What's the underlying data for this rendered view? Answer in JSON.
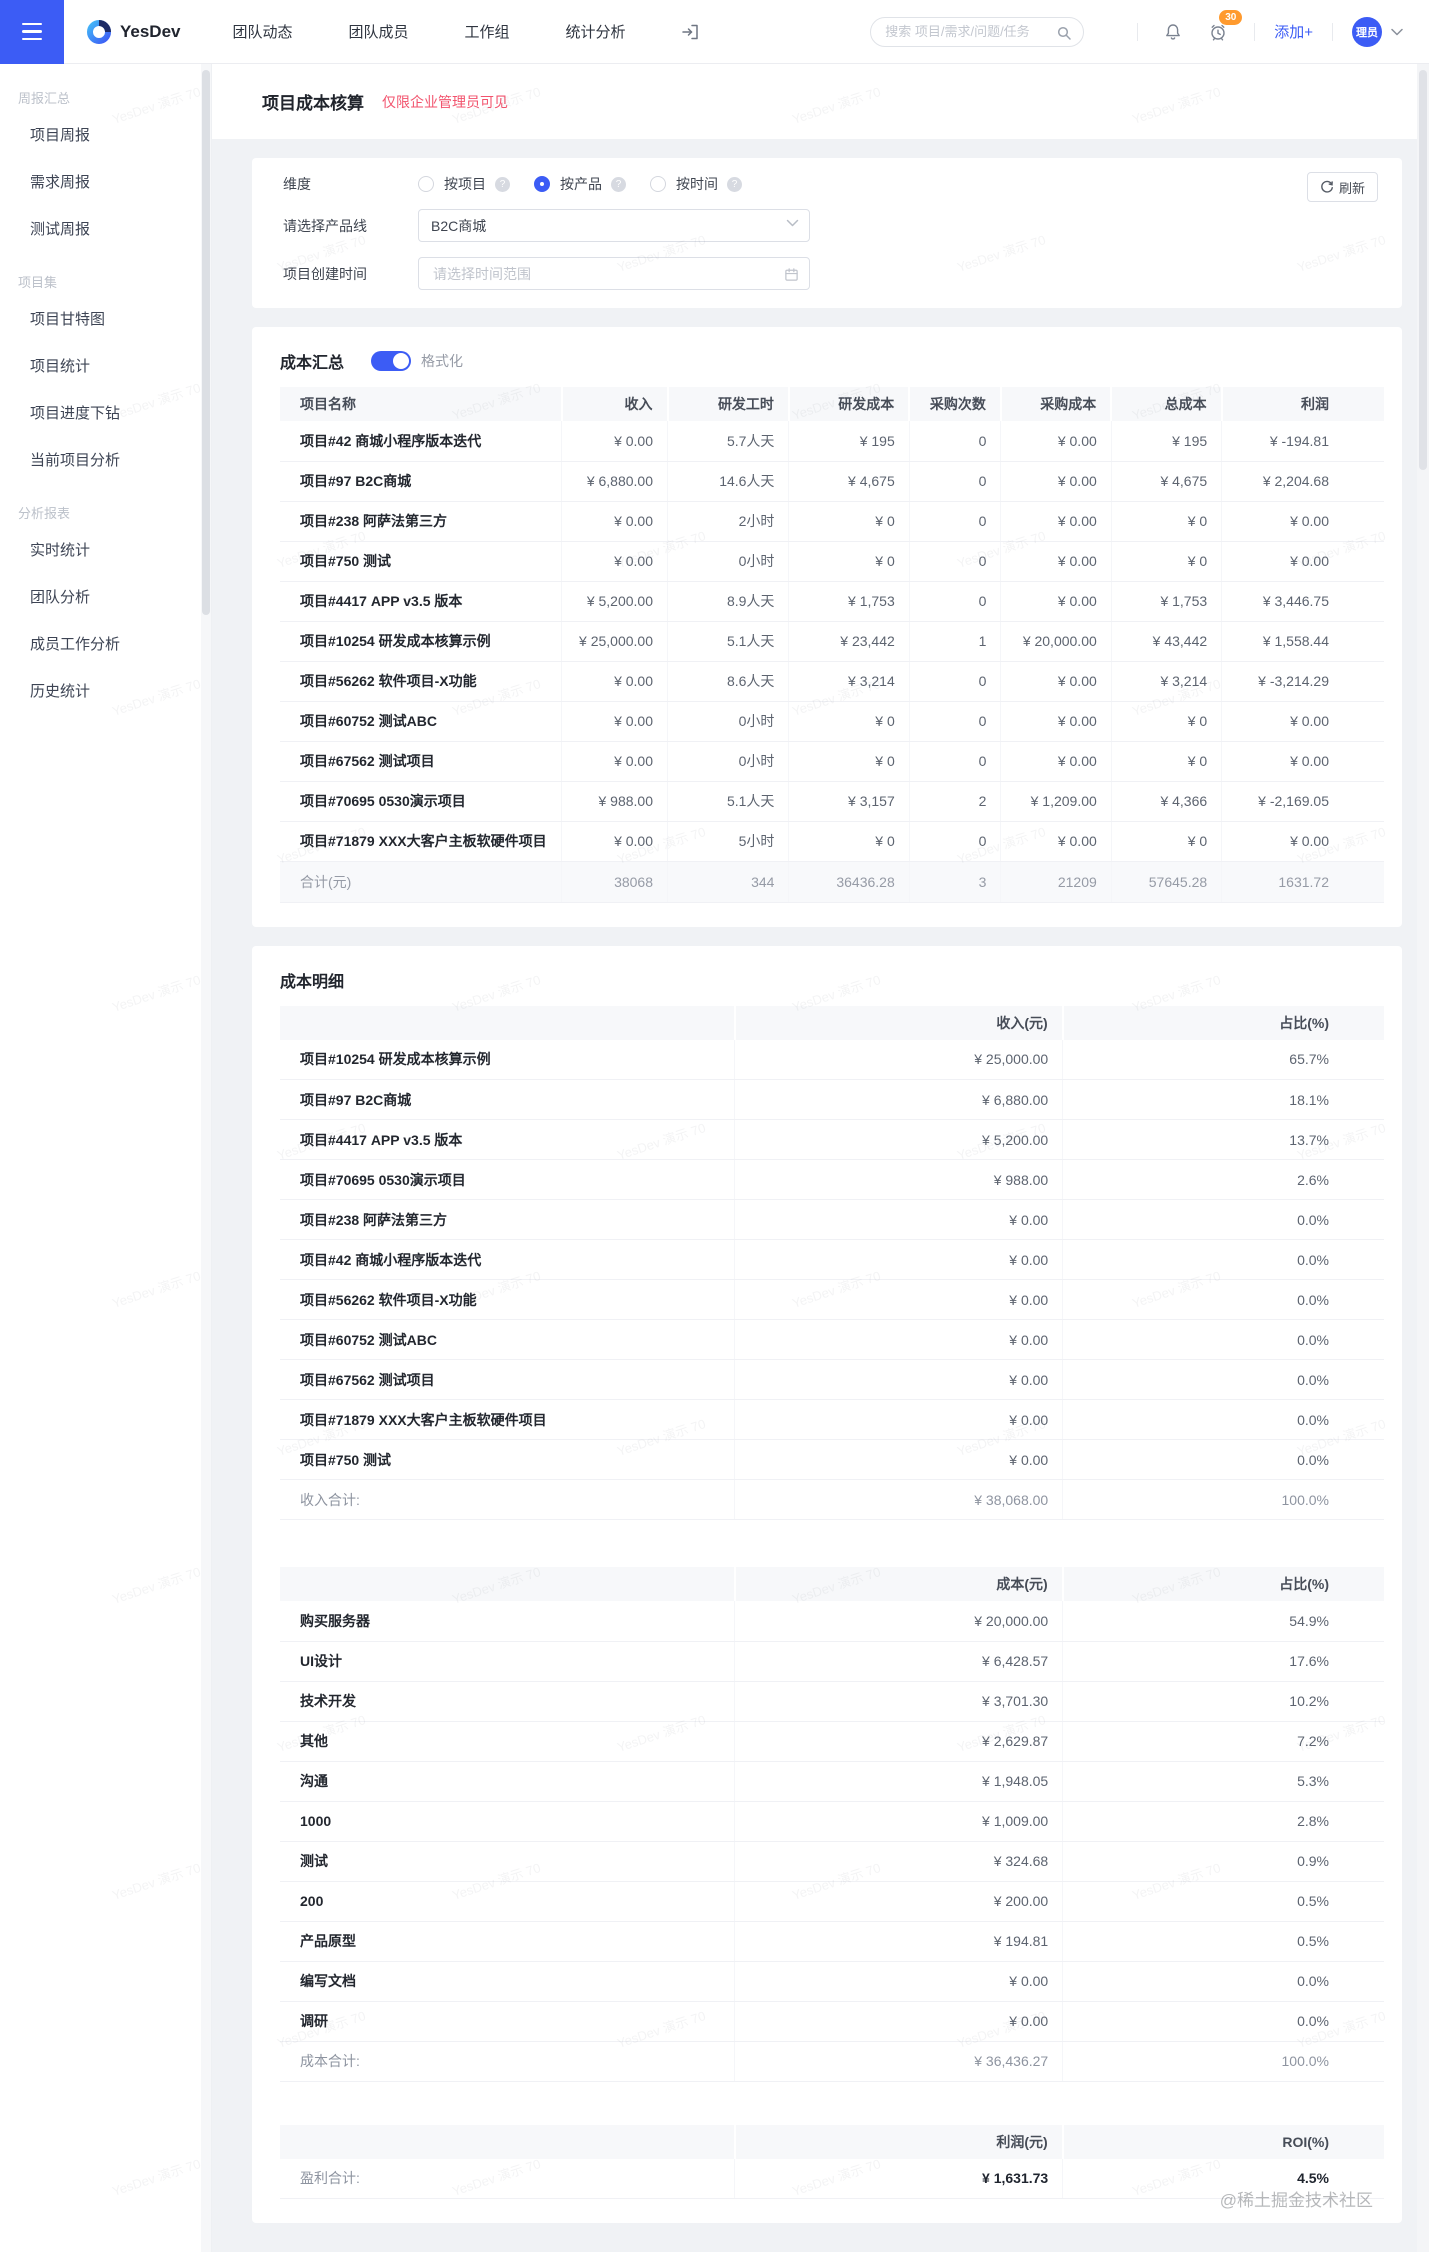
{
  "colors": {
    "accent": "#3C5CF5",
    "badge": "#FF9A2E",
    "notice": "#F2536D"
  },
  "navbar": {
    "logo_text": "YesDev",
    "menu_items": [
      "团队动态",
      "团队成员",
      "工作组",
      "统计分析"
    ],
    "search_placeholder": "搜索 项目/需求/问题/任务",
    "notification_badge": "30",
    "add_button": "添加+",
    "avatar_text": "理员"
  },
  "sidebar": {
    "sections": [
      {
        "title": "周报汇总",
        "items": [
          "项目周报",
          "需求周报",
          "测试周报"
        ]
      },
      {
        "title": "项目集",
        "items": [
          "项目甘特图",
          "项目统计",
          "项目进度下钻",
          "当前项目分析"
        ]
      },
      {
        "title": "分析报表",
        "items": [
          "实时统计",
          "团队分析",
          "成员工作分析",
          "历史统计"
        ]
      }
    ]
  },
  "page": {
    "title": "项目成本核算",
    "notice": "仅限企业管理员可见"
  },
  "filter": {
    "dimension_label": "维度",
    "dimension_options": [
      {
        "label": "按项目",
        "selected": false
      },
      {
        "label": "按产品",
        "selected": true
      },
      {
        "label": "按时间",
        "selected": false
      }
    ],
    "help_glyph": "?",
    "product_label": "请选择产品线",
    "product_value": "B2C商城",
    "time_label": "项目创建时间",
    "time_placeholder": "请选择时间范围",
    "refresh_label": "刷新"
  },
  "summary": {
    "title": "成本汇总",
    "toggle_label": "格式化",
    "toggle_on": true,
    "columns": [
      "项目名称",
      "收入",
      "研发工时",
      "研发成本",
      "采购次数",
      "采购成本",
      "总成本",
      "利润"
    ],
    "rows": [
      [
        "项目#42 商城小程序版本迭代",
        "¥ 0.00",
        "5.7人天",
        "¥ 195",
        "0",
        "¥ 0.00",
        "¥ 195",
        "¥ -194.81"
      ],
      [
        "项目#97 B2C商城",
        "¥ 6,880.00",
        "14.6人天",
        "¥ 4,675",
        "0",
        "¥ 0.00",
        "¥ 4,675",
        "¥ 2,204.68"
      ],
      [
        "项目#238 阿萨法第三方",
        "¥ 0.00",
        "2小时",
        "¥ 0",
        "0",
        "¥ 0.00",
        "¥ 0",
        "¥ 0.00"
      ],
      [
        "项目#750 测试",
        "¥ 0.00",
        "0小时",
        "¥ 0",
        "0",
        "¥ 0.00",
        "¥ 0",
        "¥ 0.00"
      ],
      [
        "项目#4417 APP v3.5 版本",
        "¥ 5,200.00",
        "8.9人天",
        "¥ 1,753",
        "0",
        "¥ 0.00",
        "¥ 1,753",
        "¥ 3,446.75"
      ],
      [
        "项目#10254 研发成本核算示例",
        "¥ 25,000.00",
        "5.1人天",
        "¥ 23,442",
        "1",
        "¥ 20,000.00",
        "¥ 43,442",
        "¥ 1,558.44"
      ],
      [
        "项目#56262 软件项目-X功能",
        "¥ 0.00",
        "8.6人天",
        "¥ 3,214",
        "0",
        "¥ 0.00",
        "¥ 3,214",
        "¥ -3,214.29"
      ],
      [
        "项目#60752 测试ABC",
        "¥ 0.00",
        "0小时",
        "¥ 0",
        "0",
        "¥ 0.00",
        "¥ 0",
        "¥ 0.00"
      ],
      [
        "项目#67562 测试项目",
        "¥ 0.00",
        "0小时",
        "¥ 0",
        "0",
        "¥ 0.00",
        "¥ 0",
        "¥ 0.00"
      ],
      [
        "项目#70695 0530演示项目",
        "¥ 988.00",
        "5.1人天",
        "¥ 3,157",
        "2",
        "¥ 1,209.00",
        "¥ 4,366",
        "¥ -2,169.05"
      ],
      [
        "项目#71879 XXX大客户主板软硬件项目",
        "¥ 0.00",
        "5小时",
        "¥ 0",
        "0",
        "¥ 0.00",
        "¥ 0",
        "¥ 0.00"
      ]
    ],
    "total": [
      "合计(元)",
      "38068",
      "344",
      "36436.28",
      "3",
      "21209",
      "57645.28",
      "1631.72"
    ]
  },
  "detail": {
    "title": "成本明细",
    "tables": [
      {
        "id": "income",
        "headers": [
          "",
          "收入(元)",
          "占比(%)"
        ],
        "rows": [
          [
            "项目#10254 研发成本核算示例",
            "¥ 25,000.00",
            "65.7%"
          ],
          [
            "项目#97 B2C商城",
            "¥ 6,880.00",
            "18.1%"
          ],
          [
            "项目#4417 APP v3.5 版本",
            "¥ 5,200.00",
            "13.7%"
          ],
          [
            "项目#70695 0530演示项目",
            "¥ 988.00",
            "2.6%"
          ],
          [
            "项目#238 阿萨法第三方",
            "¥ 0.00",
            "0.0%"
          ],
          [
            "项目#42 商城小程序版本迭代",
            "¥ 0.00",
            "0.0%"
          ],
          [
            "项目#56262 软件项目-X功能",
            "¥ 0.00",
            "0.0%"
          ],
          [
            "项目#60752 测试ABC",
            "¥ 0.00",
            "0.0%"
          ],
          [
            "项目#67562 测试项目",
            "¥ 0.00",
            "0.0%"
          ],
          [
            "项目#71879 XXX大客户主板软硬件项目",
            "¥ 0.00",
            "0.0%"
          ],
          [
            "项目#750 测试",
            "¥ 0.00",
            "0.0%"
          ]
        ],
        "total": [
          "收入合计:",
          "¥ 38,068.00",
          "100.0%"
        ],
        "total_bold": false
      },
      {
        "id": "cost",
        "headers": [
          "",
          "成本(元)",
          "占比(%)"
        ],
        "rows": [
          [
            "购买服务器",
            "¥ 20,000.00",
            "54.9%"
          ],
          [
            "UI设计",
            "¥ 6,428.57",
            "17.6%"
          ],
          [
            "技术开发",
            "¥ 3,701.30",
            "10.2%"
          ],
          [
            "其他",
            "¥ 2,629.87",
            "7.2%"
          ],
          [
            "沟通",
            "¥ 1,948.05",
            "5.3%"
          ],
          [
            "1000",
            "¥ 1,009.00",
            "2.8%"
          ],
          [
            "测试",
            "¥ 324.68",
            "0.9%"
          ],
          [
            "200",
            "¥ 200.00",
            "0.5%"
          ],
          [
            "产品原型",
            "¥ 194.81",
            "0.5%"
          ],
          [
            "编写文档",
            "¥ 0.00",
            "0.0%"
          ],
          [
            "调研",
            "¥ 0.00",
            "0.0%"
          ]
        ],
        "total": [
          "成本合计:",
          "¥ 36,436.27",
          "100.0%"
        ],
        "total_bold": false
      },
      {
        "id": "profit",
        "headers": [
          "",
          "利润(元)",
          "ROI(%)"
        ],
        "rows": [],
        "total": [
          "盈利合计:",
          "¥ 1,631.73",
          "4.5%"
        ],
        "total_bold": true
      }
    ]
  },
  "watermarks": {
    "corner": "@稀土掘金技术社区",
    "tile": "YesDev 演示 70"
  }
}
